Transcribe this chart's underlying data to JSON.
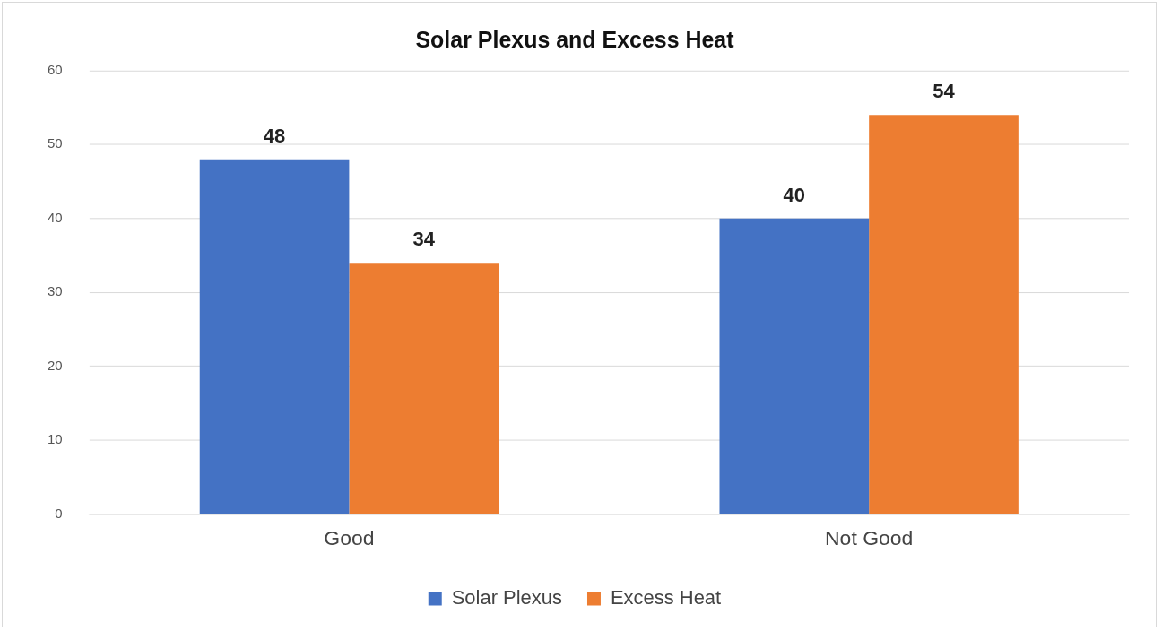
{
  "chart_data": {
    "type": "bar",
    "title": "Solar Plexus and Excess Heat",
    "categories": [
      "Good",
      "Not Good"
    ],
    "series": [
      {
        "name": "Solar Plexus",
        "color": "#4472c4",
        "values": [
          48,
          40
        ]
      },
      {
        "name": "Excess Heat",
        "color": "#ed7d31",
        "values": [
          34,
          54
        ]
      }
    ],
    "ylim": [
      0,
      60
    ],
    "yticks": [
      0,
      10,
      20,
      30,
      40,
      50,
      60
    ],
    "grid": "y",
    "legend": "bottom",
    "data_labels": true
  }
}
